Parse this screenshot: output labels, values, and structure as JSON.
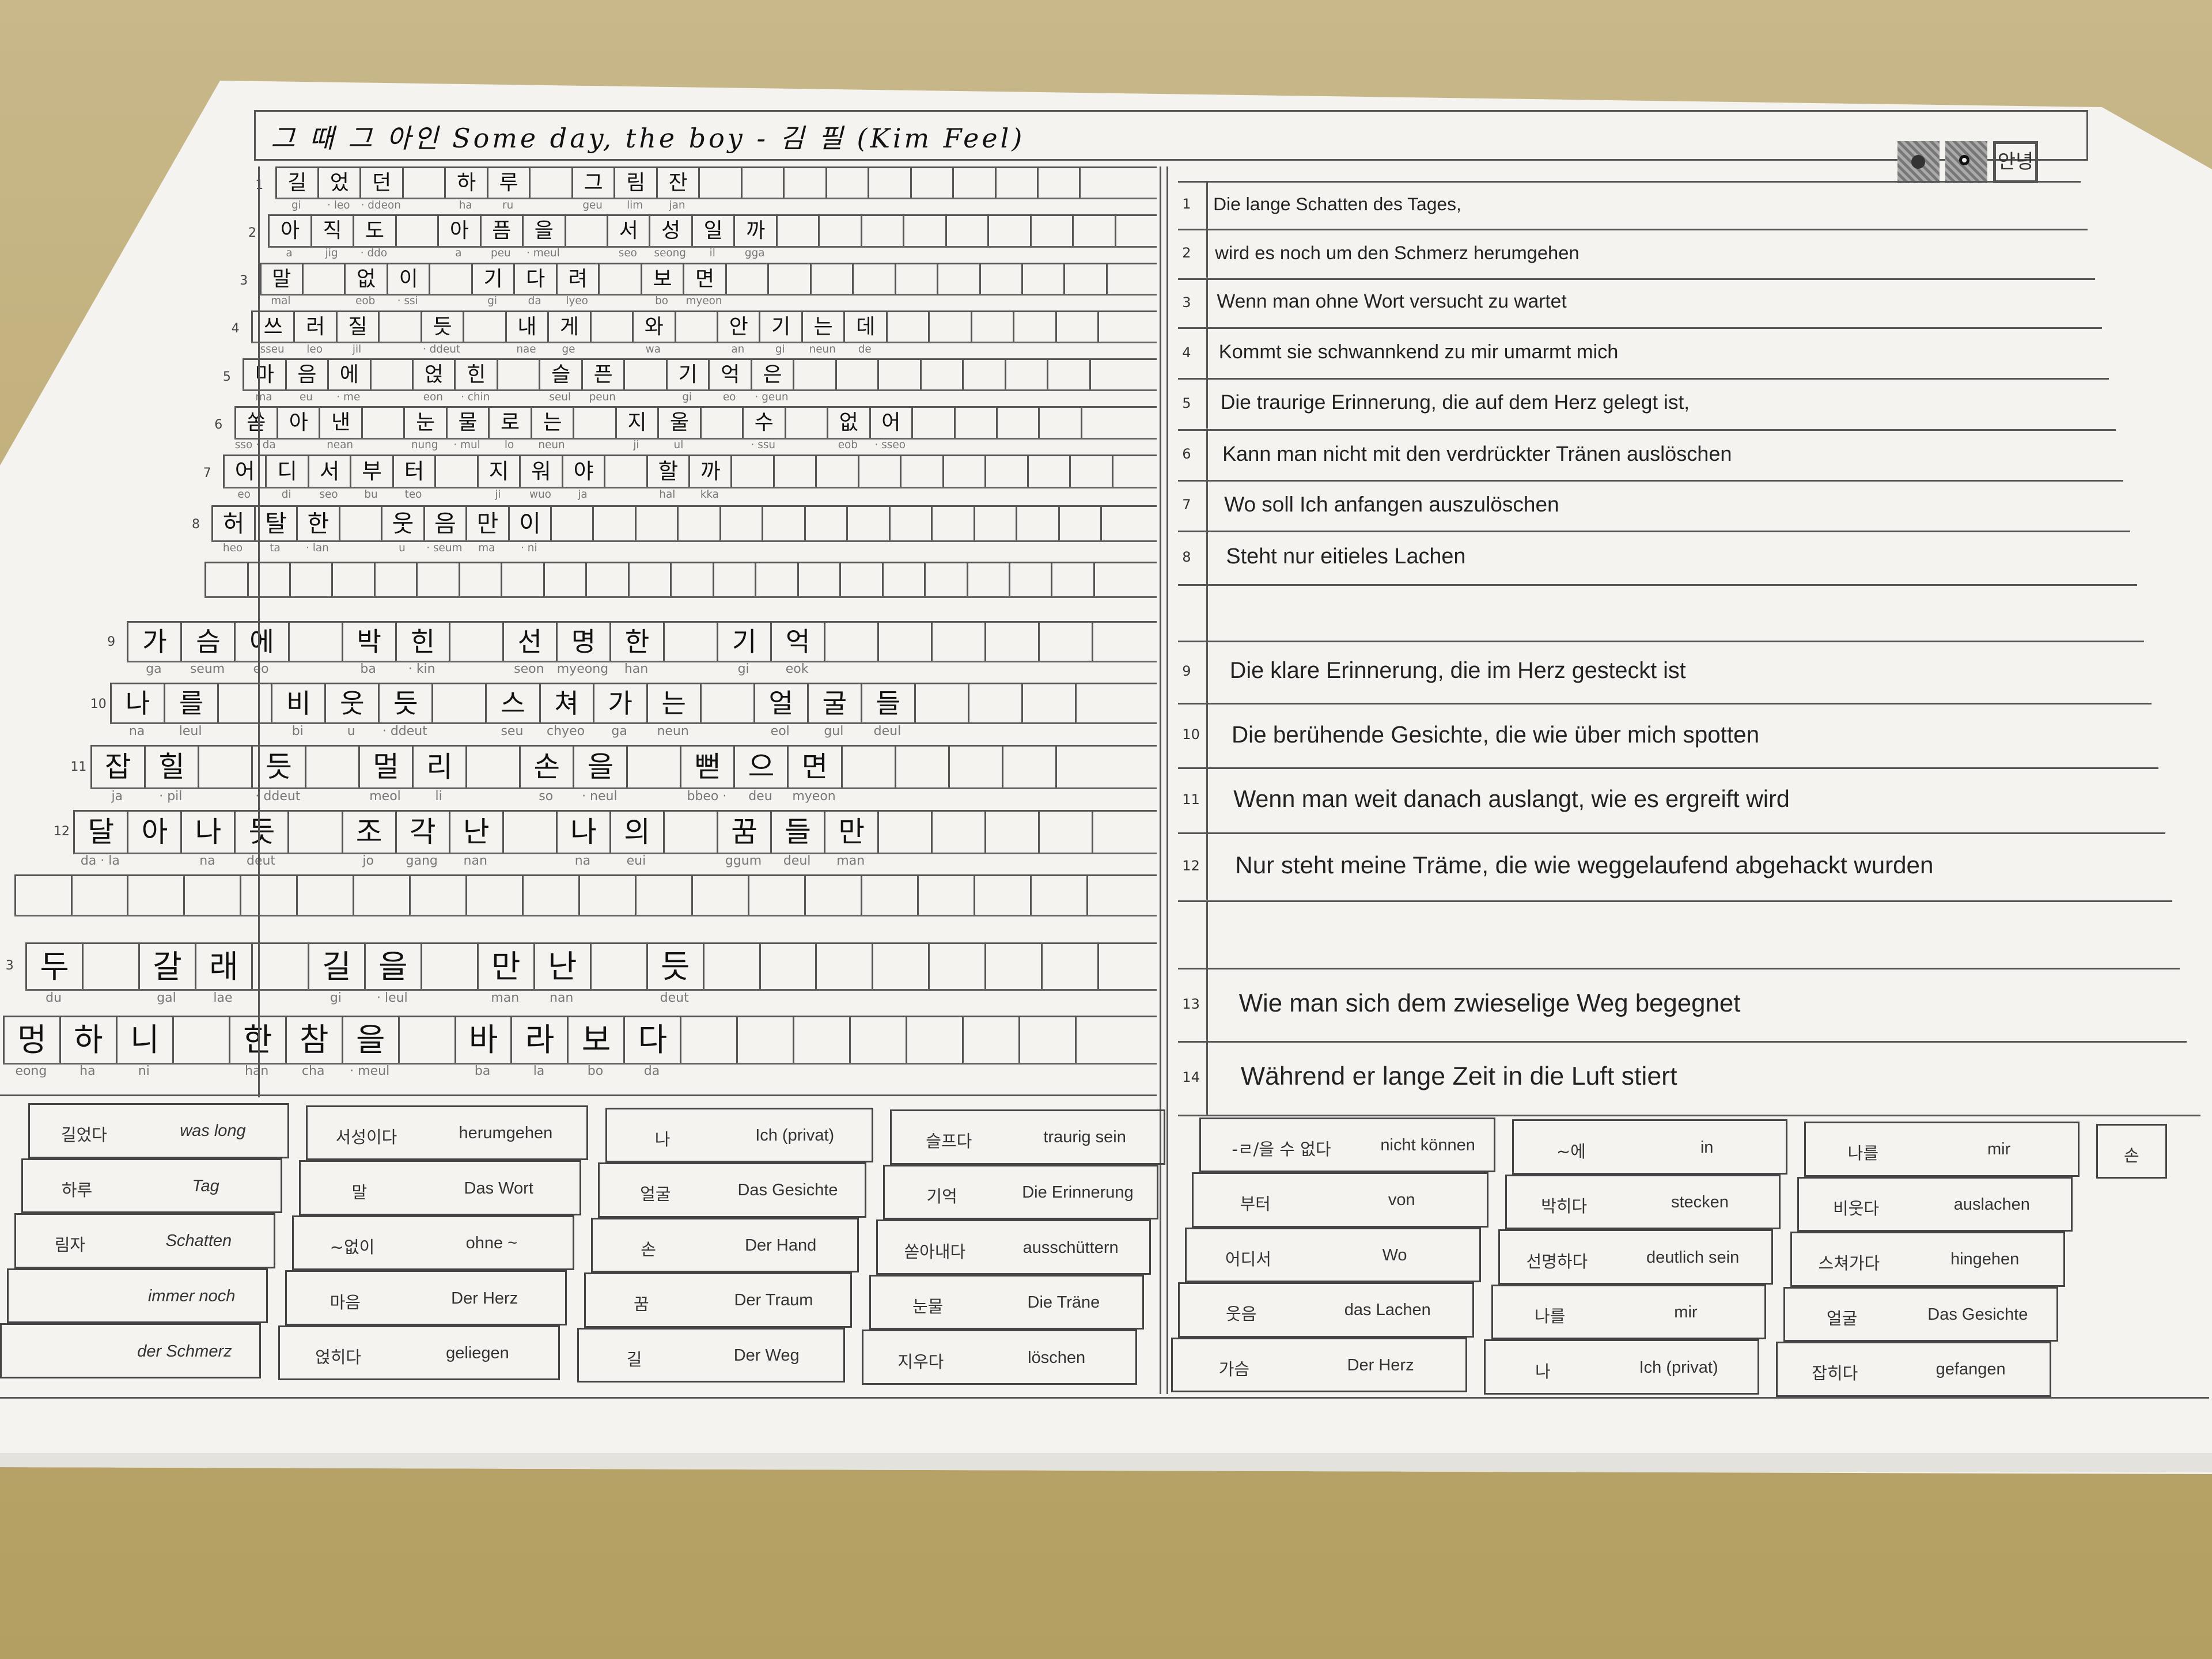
{
  "title": "그 때 그 아인 Some day, the boy - 김 필 (Kim Feel)",
  "logo": {
    "text": "안녕",
    "icons": [
      "qr-code-icon",
      "qr-code-icon"
    ]
  },
  "korean_rows": [
    {
      "num": "1",
      "cells": [
        "길",
        "었",
        "던",
        "",
        "하",
        "루",
        "",
        "그",
        "림",
        "잔"
      ],
      "roman": [
        "gi",
        "· leo",
        "· ddeon",
        "",
        "ha",
        "ru",
        "",
        "geu",
        "lim",
        "jan"
      ]
    },
    {
      "num": "2",
      "cells": [
        "아",
        "직",
        "도",
        "",
        "아",
        "픔",
        "을",
        "",
        "서",
        "성",
        "일",
        "까"
      ],
      "roman": [
        "a",
        "jig",
        "· ddo",
        "",
        "a",
        "peu",
        "· meul",
        "",
        "seo",
        "seong",
        "il",
        "gga"
      ]
    },
    {
      "num": "3",
      "cells": [
        "말",
        "",
        "없",
        "이",
        "",
        "기",
        "다",
        "려",
        "",
        "보",
        "면"
      ],
      "roman": [
        "mal",
        "",
        "eob",
        "· ssi",
        "",
        "gi",
        "da",
        "lyeo",
        "",
        "bo",
        "myeon"
      ]
    },
    {
      "num": "4",
      "cells": [
        "쓰",
        "러",
        "질",
        "",
        "듯",
        "",
        "내",
        "게",
        "",
        "와",
        "",
        "안",
        "기",
        "는",
        "데"
      ],
      "roman": [
        "sseu",
        "leo",
        "jil",
        "",
        "· ddeut",
        "",
        "nae",
        "ge",
        "",
        "wa",
        "",
        "an",
        "gi",
        "neun",
        "de"
      ]
    },
    {
      "num": "5",
      "cells": [
        "마",
        "음",
        "에",
        "",
        "얹",
        "힌",
        "",
        "슬",
        "픈",
        "",
        "기",
        "억",
        "은"
      ],
      "roman": [
        "ma",
        "eu",
        "· me",
        "",
        "eon",
        "· chin",
        "",
        "seul",
        "peun",
        "",
        "gi",
        "eo",
        "· geun"
      ]
    },
    {
      "num": "6",
      "cells": [
        "쏟",
        "아",
        "낸",
        "",
        "눈",
        "물",
        "로",
        "는",
        "",
        "지",
        "울",
        "",
        "수",
        "",
        "없",
        "어"
      ],
      "roman": [
        "sso · da",
        "",
        "nean",
        "",
        "nung",
        "· mul",
        "lo",
        "neun",
        "",
        "ji",
        "ul",
        "",
        "· ssu",
        "",
        "eob",
        "· sseo"
      ]
    },
    {
      "num": "7",
      "cells": [
        "어",
        "디",
        "서",
        "부",
        "터",
        "",
        "지",
        "워",
        "야",
        "",
        "할",
        "까"
      ],
      "roman": [
        "eo",
        "di",
        "seo",
        "bu",
        "teo",
        "",
        "ji",
        "wuo",
        "ja",
        "",
        "hal",
        "kka"
      ]
    },
    {
      "num": "8",
      "cells": [
        "허",
        "탈",
        "한",
        "",
        "웃",
        "음",
        "만",
        "이"
      ],
      "roman": [
        "heo",
        "ta",
        "· lan",
        "",
        "u",
        "· seum",
        "ma",
        "· ni"
      ]
    },
    {
      "num": "9",
      "cells": [
        "가",
        "슴",
        "에",
        "",
        "박",
        "힌",
        "",
        "선",
        "명",
        "한",
        "",
        "기",
        "억"
      ],
      "roman": [
        "ga",
        "seum",
        "eo",
        "",
        "ba",
        "· kin",
        "",
        "seon",
        "myeong",
        "han",
        "",
        "gi",
        "eok"
      ]
    },
    {
      "num": "10",
      "cells": [
        "나",
        "를",
        "",
        "비",
        "웃",
        "듯",
        "",
        "스",
        "쳐",
        "가",
        "는",
        "",
        "얼",
        "굴",
        "들"
      ],
      "roman": [
        "na",
        "leul",
        "",
        "bi",
        "u",
        "· ddeut",
        "",
        "seu",
        "chyeo",
        "ga",
        "neun",
        "",
        "eol",
        "gul",
        "deul"
      ]
    },
    {
      "num": "11",
      "cells": [
        "잡",
        "힐",
        "",
        "듯",
        "",
        "멀",
        "리",
        "",
        "손",
        "을",
        "",
        "뻗",
        "으",
        "면"
      ],
      "roman": [
        "ja",
        "· pil",
        "",
        "· ddeut",
        "",
        "meol",
        "li",
        "",
        "so",
        "· neul",
        "",
        "bbeo ·",
        "deu",
        "myeon"
      ]
    },
    {
      "num": "12",
      "cells": [
        "달",
        "아",
        "나",
        "듯",
        "",
        "조",
        "각",
        "난",
        "",
        "나",
        "의",
        "",
        "꿈",
        "들",
        "만"
      ],
      "roman": [
        "da · la",
        "",
        "na",
        "deut",
        "",
        "jo",
        "gang",
        "nan",
        "",
        "na",
        "eui",
        "",
        "ggum",
        "deul",
        "man"
      ]
    },
    {
      "num": "3",
      "cells": [
        "두",
        "",
        "갈",
        "래",
        "",
        "길",
        "을",
        "",
        "만",
        "난",
        "",
        "듯"
      ],
      "roman": [
        "du",
        "",
        "gal",
        "lae",
        "",
        "gi",
        "· leul",
        "",
        "man",
        "nan",
        "",
        "deut"
      ]
    },
    {
      "num": "",
      "cells": [
        "멍",
        "하",
        "니",
        "",
        "한",
        "참",
        "을",
        "",
        "바",
        "라",
        "보",
        "다"
      ],
      "roman": [
        "eong",
        "ha",
        "ni",
        "",
        "han",
        "cha",
        "· meul",
        "",
        "ba",
        "la",
        "bo",
        "da"
      ]
    }
  ],
  "german_lines": [
    {
      "num": "1",
      "text": "Die lange Schatten des Tages,"
    },
    {
      "num": "2",
      "text": "wird es noch um den  Schmerz herumgehen"
    },
    {
      "num": "3",
      "text": "Wenn man ohne Wort versucht zu wartet"
    },
    {
      "num": "4",
      "text": "Kommt sie schwannkend zu mir umarmt mich"
    },
    {
      "num": "5",
      "text": "Die traurige Erinnerung, die auf dem Herz gelegt ist,"
    },
    {
      "num": "6",
      "text": "Kann man nicht mit den verdrückter Tränen auslöschen"
    },
    {
      "num": "7",
      "text": "Wo soll Ich anfangen auszulöschen"
    },
    {
      "num": "8",
      "text": "Steht nur eitieles Lachen"
    },
    {
      "num": "",
      "text": ""
    },
    {
      "num": "9",
      "text": "Die klare Erinnerung, die im Herz gesteckt ist"
    },
    {
      "num": "10",
      "text": "Die berühende Gesichte, die wie über mich spotten"
    },
    {
      "num": "11",
      "text": "Wenn man weit danach auslangt, wie es ergreift wird"
    },
    {
      "num": "12",
      "text": "Nur steht meine Träme, die wie weggelaufend abgehackt wurden"
    },
    {
      "num": "",
      "text": ""
    },
    {
      "num": "13",
      "text": "Wie man sich dem zwieselige Weg begegnet"
    },
    {
      "num": "14",
      "text": "Während er lange Zeit in die Luft stiert"
    }
  ],
  "vocabulary_left": [
    [
      {
        "ko": "길었다",
        "de": "was long"
      },
      {
        "ko": "하루",
        "de": "Tag"
      },
      {
        "ko": "림자",
        "de": "Schatten"
      },
      {
        "ko": "",
        "de": "immer noch"
      },
      {
        "ko": "",
        "de": "der Schmerz"
      }
    ],
    [
      {
        "ko": "서성이다",
        "de": "herumgehen"
      },
      {
        "ko": "말",
        "de": "Das Wort"
      },
      {
        "ko": "~없이",
        "de": "ohne ~"
      },
      {
        "ko": "마음",
        "de": "Der Herz"
      },
      {
        "ko": "얹히다",
        "de": "geliegen"
      }
    ],
    [
      {
        "ko": "나",
        "de": "Ich (privat)"
      },
      {
        "ko": "얼굴",
        "de": "Das Gesichte"
      },
      {
        "ko": "손",
        "de": "Der Hand"
      },
      {
        "ko": "꿈",
        "de": "Der Traum"
      },
      {
        "ko": "길",
        "de": "Der Weg"
      }
    ],
    [
      {
        "ko": "슬프다",
        "de": "traurig sein"
      },
      {
        "ko": "기억",
        "de": "Die Erinnerung"
      },
      {
        "ko": "쏟아내다",
        "de": "ausschüttern"
      },
      {
        "ko": "눈물",
        "de": "Die Träne"
      },
      {
        "ko": "지우다",
        "de": "löschen"
      }
    ]
  ],
  "vocabulary_right": [
    [
      {
        "ko": "-ㄹ/을 수 없다",
        "de": "nicht können"
      },
      {
        "ko": "부터",
        "de": "von"
      },
      {
        "ko": "어디서",
        "de": "Wo"
      },
      {
        "ko": "웃음",
        "de": "das Lachen"
      },
      {
        "ko": "가슴",
        "de": "Der Herz"
      }
    ],
    [
      {
        "ko": "~에",
        "de": "in"
      },
      {
        "ko": "박히다",
        "de": "stecken"
      },
      {
        "ko": "선명하다",
        "de": "deutlich sein"
      },
      {
        "ko": "나를",
        "de": "mir"
      },
      {
        "ko": "나",
        "de": "Ich (privat)"
      }
    ],
    [
      {
        "ko": "나를",
        "de": "mir"
      },
      {
        "ko": "비웃다",
        "de": "auslachen"
      },
      {
        "ko": "스쳐가다",
        "de": "hingehen"
      },
      {
        "ko": "얼굴",
        "de": "Das Gesichte"
      },
      {
        "ko": "잡히다",
        "de": "gefangen"
      }
    ],
    [
      {
        "ko": "손",
        "de": ""
      }
    ]
  ]
}
